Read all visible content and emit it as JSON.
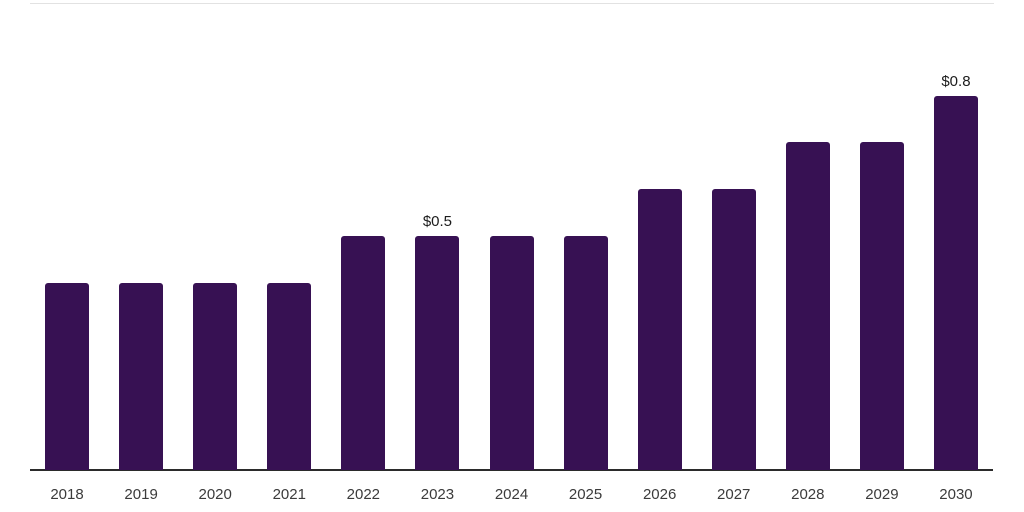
{
  "chart_data": {
    "type": "bar",
    "title": "",
    "xlabel": "",
    "ylabel": "",
    "categories": [
      "2018",
      "2019",
      "2020",
      "2021",
      "2022",
      "2023",
      "2024",
      "2025",
      "2026",
      "2027",
      "2028",
      "2029",
      "2030"
    ],
    "values": [
      0.4,
      0.4,
      0.4,
      0.4,
      0.5,
      0.5,
      0.5,
      0.5,
      0.6,
      0.6,
      0.7,
      0.7,
      0.8
    ],
    "value_prefix": "$",
    "data_labels": [
      {
        "category": "2023",
        "text": "$0.5"
      },
      {
        "category": "2030",
        "text": "$0.8"
      }
    ],
    "ylim": [
      0,
      0.85
    ],
    "grid": false,
    "legend": "none",
    "y_axis_shown": false,
    "colors": {
      "bar": "#371153",
      "axis_line": "#2b2b2b",
      "tick_label": "#3b3b3b",
      "data_label": "#1c1c1c",
      "top_rule": "#e2e2e2",
      "background": "#ffffff"
    }
  }
}
